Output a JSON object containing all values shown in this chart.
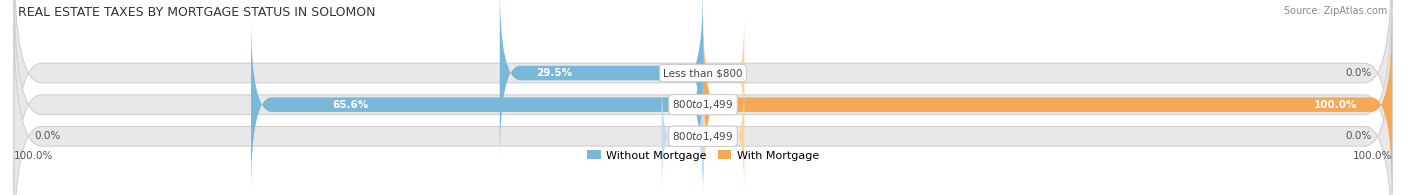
{
  "title": "REAL ESTATE TAXES BY MORTGAGE STATUS IN SOLOMON",
  "source": "Source: ZipAtlas.com",
  "rows": [
    {
      "label": "Less than $800",
      "without_mortgage": 29.5,
      "with_mortgage": 0.0,
      "left_label": "29.5%",
      "right_label": "0.0%"
    },
    {
      "label": "$800 to $1,499",
      "without_mortgage": 65.6,
      "with_mortgage": 100.0,
      "left_label": "65.6%",
      "right_label": "100.0%"
    },
    {
      "label": "$800 to $1,499",
      "without_mortgage": 0.0,
      "with_mortgage": 0.0,
      "left_label": "0.0%",
      "right_label": "0.0%"
    }
  ],
  "color_without": "#7ab8d9",
  "color_with": "#f5a855",
  "color_without_light": "#c6dcee",
  "color_with_light": "#f9d4a0",
  "bar_bg_color": "#e8e8e8",
  "max_val": 100.0,
  "title_fontsize": 9.0,
  "label_fontsize": 7.5,
  "source_fontsize": 7.0,
  "legend_fontsize": 8.0,
  "bottom_left_label": "100.0%",
  "bottom_right_label": "100.0%"
}
